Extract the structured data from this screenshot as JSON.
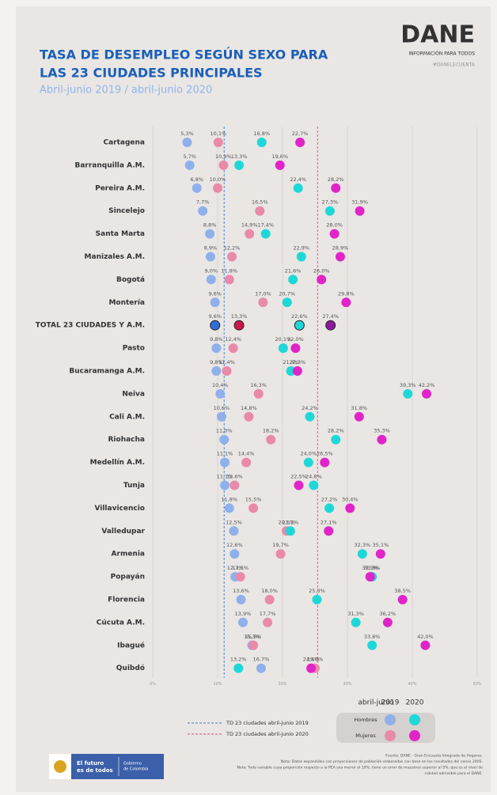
{
  "chart_data": {
    "type": "dot",
    "title": [
      "TASA DE DESEMPLEO SEGÚN SEXO PARA",
      "LAS 23 CIUDADES PRINCIPALES"
    ],
    "subtitle": "Abril-junio 2019 / abril-junio 2020",
    "brand": {
      "name": "DANE",
      "tagline": "INFORMACIÓN PARA TODOS",
      "hashtag": "#DANELECUENTA"
    },
    "categories": [
      "Cartagena",
      "Barranquilla A.M.",
      "Pereira A.M.",
      "Sincelejo",
      "Santa Marta",
      "Manizales A.M.",
      "Bogotá",
      "Montería",
      "TOTAL 23 CIUDADES Y A.M.",
      "Pasto",
      "Bucaramanga A.M.",
      "Neiva",
      "Cali A.M.",
      "Riohacha",
      "Medellín A.M.",
      "Tunja",
      "Villavicencio",
      "Valledupar",
      "Armenia",
      "Popayán",
      "Florencia",
      "Cúcuta A.M.",
      "Ibagué",
      "Quibdó"
    ],
    "highlight": 8,
    "series": [
      {
        "color": "#8fb0ea",
        "highlight_color": "#2f6fd8",
        "values": [
          5.3,
          5.7,
          6.8,
          7.7,
          8.8,
          8.9,
          9.0,
          9.6,
          9.6,
          9.8,
          9.8,
          10.4,
          10.6,
          11.0,
          11.1,
          11.1,
          11.8,
          12.5,
          12.6,
          12.7,
          13.6,
          13.9,
          15.3,
          16.7
        ],
        "value_labels": [
          "5,3%",
          "5,7%",
          "6,8%",
          "7,7%",
          "8,8%",
          "8,9%",
          "9,0%",
          "9,6%",
          "9,6%",
          "9,8%",
          "9,8%",
          "10,4%",
          "10,6%",
          "11,0%",
          "11,1%",
          "11,1%",
          "11,8%",
          "12,5%",
          "12,6%",
          "12,7%",
          "13,6%",
          "13,9%",
          "15,3%",
          "16,7%"
        ]
      },
      {
        "color": "#e98aa8",
        "highlight_color": "#c8194a",
        "values": [
          10.1,
          10.9,
          10.0,
          16.5,
          14.9,
          12.2,
          11.8,
          17.0,
          13.3,
          12.4,
          11.4,
          16.3,
          14.8,
          18.2,
          14.4,
          12.6,
          15.5,
          20.6,
          19.7,
          13.5,
          18.0,
          17.7,
          15.5,
          25.0
        ],
        "value_labels": [
          "10,1%",
          "10,9%",
          "10,0%",
          "16,5%",
          "14,9%",
          "12,2%",
          "11,8%",
          "17,0%",
          "13,3%",
          "12,4%",
          "11,4%",
          "16,3%",
          "14,8%",
          "18,2%",
          "14,4%",
          "12,6%",
          "15,5%",
          "20,6%",
          "19,7%",
          "13,5%",
          "18,0%",
          "17,7%",
          "15,5%",
          "25,0%"
        ]
      },
      {
        "color": "#1ed8d8",
        "highlight_color": "#1ed8d8",
        "values": [
          16.8,
          13.3,
          22.4,
          27.3,
          17.4,
          22.9,
          21.6,
          20.7,
          22.6,
          20.1,
          21.3,
          39.3,
          24.2,
          28.2,
          24.0,
          24.8,
          27.2,
          21.2,
          32.3,
          33.8,
          25.3,
          31.3,
          33.8,
          13.2
        ],
        "value_labels": [
          "16,8%",
          "13,3%",
          "22,4%",
          "27,3%",
          "17,4%",
          "22,9%",
          "21,6%",
          "20,7%",
          "22,6%",
          "20,1%",
          "21,3%",
          "39,3%",
          "24,2%",
          "28,2%",
          "24,0%",
          "24,8%",
          "27,2%",
          "21,2%",
          "32,3%",
          "33,8%",
          "25,3%",
          "31,3%",
          "33,8%",
          "13,2%"
        ]
      },
      {
        "color": "#e024c8",
        "highlight_color": "#8b1a9c",
        "values": [
          22.7,
          19.6,
          28.2,
          31.9,
          28.0,
          28.9,
          26.0,
          29.8,
          27.4,
          22.0,
          22.3,
          42.2,
          31.8,
          35.3,
          26.5,
          22.5,
          30.4,
          27.1,
          35.1,
          33.5,
          38.5,
          36.2,
          42.0,
          24.4
        ],
        "value_labels": [
          "22,7%",
          "19,6%",
          "28,2%",
          "31,9%",
          "28,0%",
          "28,9%",
          "26,0%",
          "29,8%",
          "27,4%",
          "22,0%",
          "22,3%",
          "42,2%",
          "31,8%",
          "35,3%",
          "26,5%",
          "22,5%",
          "30,4%",
          "27,1%",
          "35,1%",
          "33,5%",
          "38,5%",
          "36,2%",
          "42,0%",
          "24,4%"
        ]
      }
    ],
    "xlim": [
      0,
      50
    ],
    "xticks": [
      {
        "value": 0,
        "label": "0%"
      },
      {
        "value": 10,
        "label": "10%"
      },
      {
        "value": 20,
        "label": "20%"
      },
      {
        "value": 30,
        "label": "30%"
      },
      {
        "value": 40,
        "label": "40%"
      },
      {
        "value": 50,
        "label": "50%"
      }
    ],
    "grid": true,
    "reference_lines": [
      {
        "label": "TD 23 ciudades abril-junio 2019",
        "value": 11.0,
        "color": "#3a7bd5"
      },
      {
        "label": "TD 23 ciudades abril-junio 2020",
        "value": 25.4,
        "color": "#e0507a"
      }
    ],
    "legend": {
      "title": "abril-junio",
      "years": [
        "2019",
        "2020"
      ],
      "groups": [
        "Hombres",
        "Mujeres"
      ]
    },
    "notes": [
      "Fuente: DANE - Gran Encuesta Integrada de Hogares.",
      "Nota: Datos expandidos con proyecciones de población elaboradas con base en los resultados del censo 2005.",
      "Nota: Toda variable cuya proporción respecto a la PEA sea menor al 10%, tiene un error de muestreo superior al 5%, que es el nivel de",
      "calidad admisible para el DANE."
    ],
    "footer": {
      "slogan": [
        "El futuro",
        "es de todos"
      ],
      "government": [
        "Gobierno",
        "de Colombia"
      ]
    }
  }
}
